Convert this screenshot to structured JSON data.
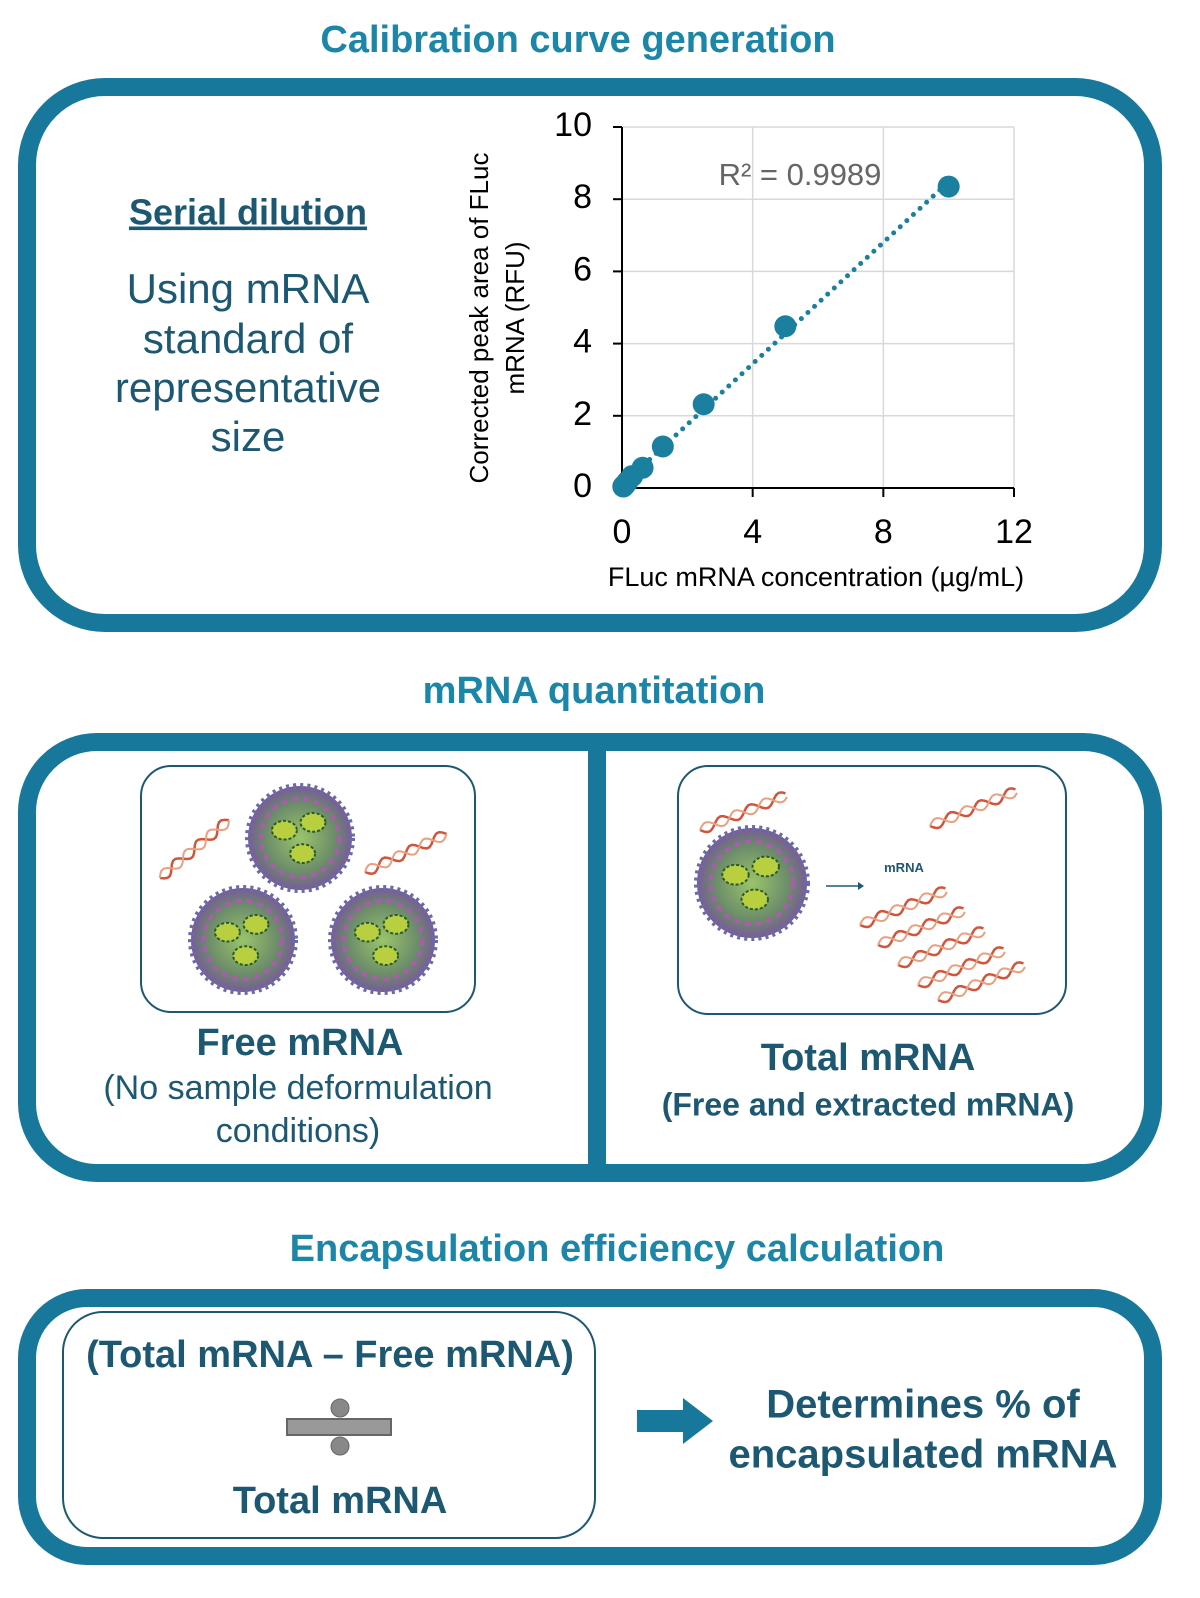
{
  "calibration": {
    "title": "Calibration curve generation",
    "heading": "Serial dilution",
    "text": [
      "Using mRNA",
      "standard of",
      "representative",
      "size"
    ]
  },
  "chart_data": {
    "type": "scatter",
    "x": [
      0.04,
      0.08,
      0.16,
      0.31,
      0.63,
      1.25,
      2.5,
      5,
      10
    ],
    "values": [
      0.04,
      0.08,
      0.17,
      0.33,
      0.56,
      1.15,
      2.32,
      4.48,
      8.35
    ],
    "color": "#1b7fa0",
    "xlim": [
      0,
      12
    ],
    "ylim": [
      0,
      10
    ],
    "xticks": [
      0,
      4,
      8,
      12
    ],
    "yticks": [
      0,
      2,
      4,
      6,
      8,
      10
    ],
    "xlabel": "FLuc mRNA concentration (µg/mL)",
    "ylabel": [
      "Corrected peak area of FLuc",
      "mRNA (RFU)"
    ],
    "annotation": "R² = 0.9989",
    "trendline": "linear",
    "grid": true
  },
  "quantitation": {
    "title": "mRNA quantitation",
    "panels": [
      {
        "label": "Free mRNA",
        "note": [
          "(No sample deformulation",
          "conditions)"
        ]
      },
      {
        "label": "Total mRNA",
        "note": [
          "(Free and extracted mRNA)"
        ],
        "illustration_label": "mRNA"
      }
    ]
  },
  "encapsulation": {
    "title": "Encapsulation efficiency calculation",
    "numerator": "(Total mRNA – Free mRNA)",
    "denominator": "Total mRNA",
    "result": [
      "Determines % of",
      "encapsulated mRNA"
    ]
  }
}
